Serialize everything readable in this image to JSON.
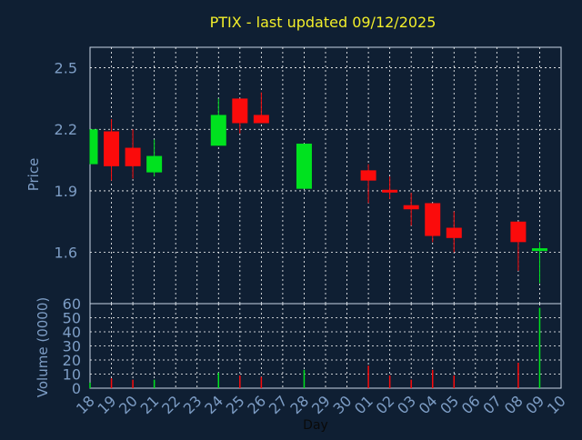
{
  "chart_data": [
    {
      "type": "candlestick",
      "title": "PTIX - last updated 09/12/2025",
      "ylabel": "Price",
      "ylim": [
        1.35,
        2.6
      ],
      "yticks": [
        "2.5",
        "2.2",
        "1.9",
        "1.6"
      ],
      "grid": true,
      "x": [
        "18",
        "19",
        "20",
        "21",
        "22",
        "23",
        "24",
        "25",
        "26",
        "27",
        "28",
        "29",
        "30",
        "01",
        "02",
        "03",
        "04",
        "05",
        "06",
        "07",
        "08",
        "09",
        "10"
      ],
      "candles": [
        {
          "day": "18",
          "open": 2.03,
          "close": 2.2,
          "high": 2.2,
          "low": 2.03,
          "direction": "up"
        },
        {
          "day": "19",
          "open": 2.19,
          "close": 2.02,
          "high": 2.25,
          "low": 1.95,
          "direction": "down"
        },
        {
          "day": "20",
          "open": 2.11,
          "close": 2.02,
          "high": 2.2,
          "low": 1.96,
          "direction": "down"
        },
        {
          "day": "21",
          "open": 1.99,
          "close": 2.07,
          "high": 2.15,
          "low": 1.97,
          "direction": "up"
        },
        {
          "day": "24",
          "open": 2.12,
          "close": 2.27,
          "high": 2.35,
          "low": 2.12,
          "direction": "up"
        },
        {
          "day": "25",
          "open": 2.35,
          "close": 2.23,
          "high": 2.35,
          "low": 2.18,
          "direction": "down"
        },
        {
          "day": "26",
          "open": 2.27,
          "close": 2.23,
          "high": 2.38,
          "low": 2.23,
          "direction": "down"
        },
        {
          "day": "28",
          "open": 1.91,
          "close": 2.13,
          "high": 2.13,
          "low": 1.91,
          "direction": "up"
        },
        {
          "day": "01",
          "open": 2.0,
          "close": 1.95,
          "high": 2.03,
          "low": 1.84,
          "direction": "down"
        },
        {
          "day": "02",
          "open": 1.905,
          "close": 1.895,
          "high": 1.97,
          "low": 1.86,
          "direction": "down"
        },
        {
          "day": "03",
          "open": 1.83,
          "close": 1.81,
          "high": 1.89,
          "low": 1.73,
          "direction": "down"
        },
        {
          "day": "04",
          "open": 1.84,
          "close": 1.68,
          "high": 1.84,
          "low": 1.65,
          "direction": "down"
        },
        {
          "day": "05",
          "open": 1.72,
          "close": 1.67,
          "high": 1.8,
          "low": 1.6,
          "direction": "down"
        },
        {
          "day": "08",
          "open": 1.75,
          "close": 1.65,
          "high": 1.75,
          "low": 1.51,
          "direction": "down"
        },
        {
          "day": "09",
          "open": 1.61,
          "close": 1.62,
          "high": 1.65,
          "low": 1.45,
          "direction": "up"
        }
      ]
    },
    {
      "type": "bar",
      "ylabel": "Volume (0000)",
      "xlabel": "Day",
      "ylim": [
        0,
        60
      ],
      "yticks": [
        "60",
        "50",
        "40",
        "30",
        "20",
        "10",
        "0"
      ],
      "grid": true,
      "categories": [
        "18",
        "19",
        "20",
        "21",
        "24",
        "25",
        "26",
        "28",
        "01",
        "02",
        "03",
        "04",
        "05",
        "08",
        "09"
      ],
      "values": [
        4,
        7,
        6,
        6,
        11,
        9,
        8,
        13,
        16,
        9,
        6,
        13,
        9,
        18,
        57
      ],
      "directions": [
        "up",
        "down",
        "down",
        "up",
        "up",
        "down",
        "down",
        "up",
        "down",
        "down",
        "down",
        "down",
        "down",
        "down",
        "up"
      ]
    }
  ],
  "colors": {
    "up": "#00e21f",
    "down": "#fb0b0b",
    "title": "#f2ee2a",
    "axis_text": "#7d9dc5",
    "axis_title": "#7d9dc5",
    "background": "#0f1f33",
    "frame": "#c8d6e6"
  }
}
